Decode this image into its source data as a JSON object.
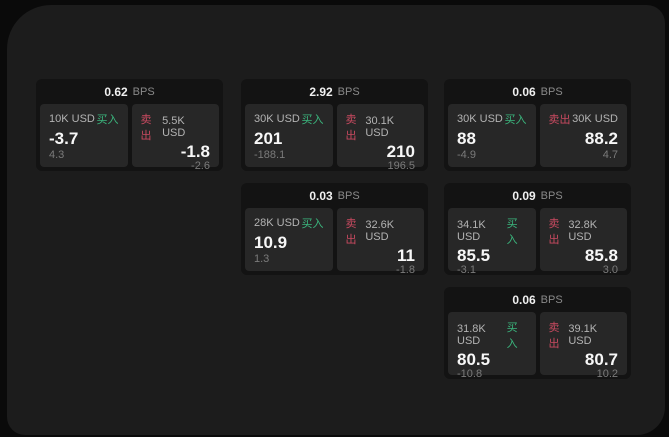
{
  "labels": {
    "bps": "BPS",
    "buy": "买入",
    "sell": "卖出"
  },
  "colors": {
    "background": "#0a0a0a",
    "window": "#1c1c1c",
    "card": "#131313",
    "sub_card": "#272727",
    "buy_accent": "#3bb77e",
    "sell_accent": "#c94a60"
  },
  "cards": [
    {
      "bps": "0.62",
      "buy": {
        "amount": "10K USD",
        "price": "-3.7",
        "delta": "4.3"
      },
      "sell": {
        "amount": "5.5K USD",
        "price": "-1.8",
        "delta": "-2.6"
      }
    },
    {
      "bps": "2.92",
      "buy": {
        "amount": "30K USD",
        "price": "201",
        "delta": "-188.1"
      },
      "sell": {
        "amount": "30.1K USD",
        "price": "210",
        "delta": "196.5"
      }
    },
    {
      "bps": "0.03",
      "buy": {
        "amount": "28K USD",
        "price": "10.9",
        "delta": "1.3"
      },
      "sell": {
        "amount": "32.6K USD",
        "price": "11",
        "delta": "-1.8"
      }
    },
    {
      "bps": "0.06",
      "buy": {
        "amount": "30K USD",
        "price": "88",
        "delta": "-4.9"
      },
      "sell": {
        "amount": "30K USD",
        "price": "88.2",
        "delta": "4.7"
      }
    },
    {
      "bps": "0.09",
      "buy": {
        "amount": "34.1K USD",
        "price": "85.5",
        "delta": "-3.1"
      },
      "sell": {
        "amount": "32.8K USD",
        "price": "85.8",
        "delta": "3.0"
      }
    },
    {
      "bps": "0.06",
      "buy": {
        "amount": "31.8K USD",
        "price": "80.5",
        "delta": "-10.8"
      },
      "sell": {
        "amount": "39.1K USD",
        "price": "80.7",
        "delta": "10.2"
      }
    }
  ]
}
